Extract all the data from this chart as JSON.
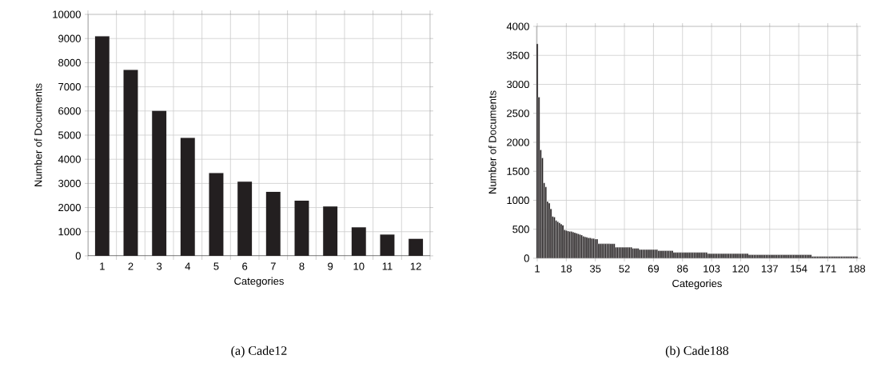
{
  "chart_data": [
    {
      "type": "bar",
      "title": "(a) Cade12",
      "xlabel": "Categories",
      "ylabel": "Number of Documents",
      "categories": [
        "1",
        "2",
        "3",
        "4",
        "5",
        "6",
        "7",
        "8",
        "9",
        "10",
        "11",
        "12"
      ],
      "values": [
        9100,
        7700,
        6000,
        4880,
        3430,
        3070,
        2650,
        2280,
        2040,
        1180,
        880,
        700
      ],
      "color": "#231f20",
      "ylim": [
        0,
        10000
      ],
      "yticks": [
        0,
        1000,
        2000,
        3000,
        4000,
        5000,
        6000,
        7000,
        8000,
        9000,
        10000
      ],
      "grid": true
    },
    {
      "type": "bar",
      "title": "(b) Cade188",
      "xlabel": "Categories",
      "ylabel": "Number of Documents",
      "categories": [
        "1",
        null,
        null,
        null,
        null,
        null,
        null,
        null,
        null,
        null,
        null,
        null,
        null,
        null,
        null,
        null,
        null,
        "18",
        null,
        null,
        null,
        null,
        null,
        null,
        null,
        null,
        null,
        null,
        null,
        null,
        null,
        null,
        null,
        null,
        "35",
        null,
        null,
        null,
        null,
        null,
        null,
        null,
        null,
        null,
        null,
        null,
        null,
        null,
        null,
        null,
        null,
        "52",
        null,
        null,
        null,
        null,
        null,
        null,
        null,
        null,
        null,
        null,
        null,
        null,
        null,
        null,
        null,
        null,
        "69",
        null,
        null,
        null,
        null,
        null,
        null,
        null,
        null,
        null,
        null,
        null,
        null,
        null,
        null,
        null,
        null,
        "86",
        null,
        null,
        null,
        null,
        null,
        null,
        null,
        null,
        null,
        null,
        null,
        null,
        null,
        null,
        null,
        null,
        "103",
        null,
        null,
        null,
        null,
        null,
        null,
        null,
        null,
        null,
        null,
        null,
        null,
        null,
        null,
        null,
        null,
        "120",
        null,
        null,
        null,
        null,
        null,
        null,
        null,
        null,
        null,
        null,
        null,
        null,
        null,
        null,
        null,
        null,
        "137",
        null,
        null,
        null,
        null,
        null,
        null,
        null,
        null,
        null,
        null,
        null,
        null,
        null,
        null,
        null,
        null,
        "154",
        null,
        null,
        null,
        null,
        null,
        null,
        null,
        null,
        null,
        null,
        null,
        null,
        null,
        null,
        null,
        null,
        "171",
        null,
        null,
        null,
        null,
        null,
        null,
        null,
        null,
        null,
        null,
        null,
        null,
        null,
        null,
        null,
        null,
        "188"
      ],
      "values": [
        3700,
        2780,
        1870,
        1730,
        1300,
        1230,
        980,
        950,
        850,
        720,
        710,
        650,
        630,
        610,
        590,
        570,
        490,
        480,
        470,
        460,
        460,
        450,
        440,
        430,
        420,
        410,
        400,
        380,
        370,
        360,
        350,
        350,
        340,
        340,
        330,
        330,
        250,
        250,
        250,
        250,
        250,
        250,
        250,
        250,
        250,
        250,
        190,
        190,
        190,
        190,
        190,
        190,
        190,
        190,
        190,
        190,
        170,
        170,
        170,
        170,
        150,
        150,
        150,
        150,
        150,
        150,
        150,
        150,
        150,
        150,
        150,
        130,
        130,
        130,
        130,
        130,
        130,
        130,
        130,
        130,
        100,
        100,
        100,
        100,
        100,
        100,
        100,
        100,
        100,
        100,
        100,
        100,
        100,
        100,
        100,
        100,
        100,
        100,
        100,
        100,
        80,
        80,
        80,
        80,
        80,
        80,
        80,
        80,
        80,
        80,
        80,
        80,
        80,
        80,
        80,
        80,
        80,
        80,
        80,
        80,
        80,
        80,
        80,
        80,
        60,
        60,
        60,
        60,
        60,
        60,
        60,
        60,
        60,
        60,
        60,
        60,
        60,
        60,
        60,
        60,
        60,
        60,
        60,
        60,
        60,
        60,
        60,
        60,
        60,
        60,
        60,
        60,
        60,
        60,
        60,
        60,
        60,
        60,
        60,
        60,
        60,
        30,
        30,
        30,
        30,
        30,
        30,
        30,
        30,
        30,
        30,
        30,
        30,
        30,
        30,
        30,
        30,
        30,
        30,
        30,
        30,
        30,
        30,
        30,
        30,
        30,
        30,
        30
      ],
      "color": "#231f20",
      "ylim": [
        0,
        4000
      ],
      "yticks": [
        0,
        500,
        1000,
        1500,
        2000,
        2500,
        3000,
        3500,
        4000
      ],
      "grid": true
    }
  ]
}
